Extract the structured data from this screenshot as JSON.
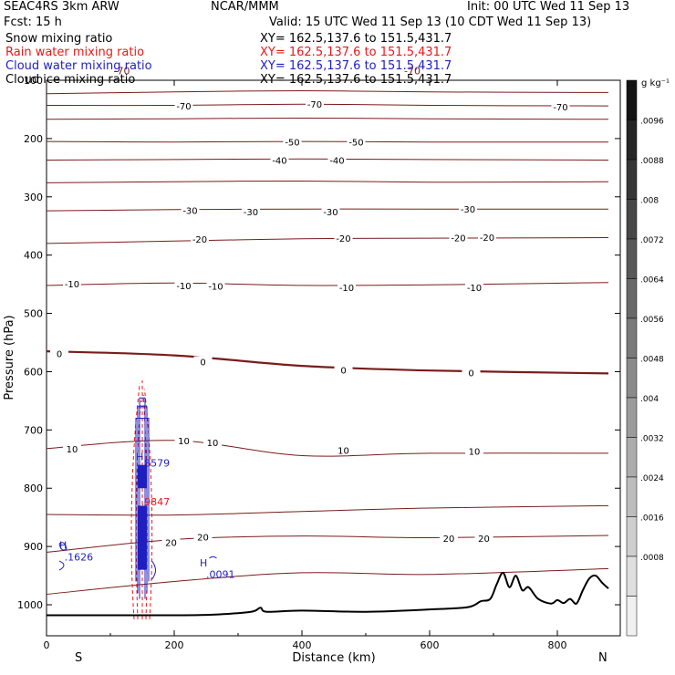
{
  "header": {
    "model": "SEAC4RS  3km ARW",
    "center": "NCAR/MMM",
    "init": "Init: 00 UTC Wed 11 Sep 13",
    "fcst": "Fcst:   15 h",
    "valid": "Valid: 15 UTC Wed 11 Sep 13 (10 CDT Wed 11 Sep 13)"
  },
  "fields": [
    {
      "name": "Snow mixing ratio",
      "xy": "XY= 162.5,137.6 to 151.5,431.7",
      "color": "#000000"
    },
    {
      "name": "Rain water mixing ratio",
      "xy": "XY= 162.5,137.6 to 151.5,431.7",
      "color": "#e41a1c"
    },
    {
      "name": "Cloud water mixing ratio",
      "xy": "XY= 162.5,137.6 to 151.5,431.7",
      "color": "#1f1fbf"
    },
    {
      "name": "Cloud ice mixing ratio",
      "xy": "XY= 162.5,137.6 to 151.5,431.7",
      "color": "#000000"
    }
  ],
  "colors": {
    "isotherm": "#7a1c1c",
    "terrain": "#000000",
    "rain": "#e41a1c",
    "cloud": "#1f1fbf"
  },
  "chart_data": {
    "type": "line",
    "xlabel": "Distance (km)",
    "ylabel": "Pressure (hPa)",
    "xlim": [
      0,
      880
    ],
    "ylim": [
      1050,
      100
    ],
    "x_ticks": [
      "0",
      "200",
      "400",
      "600",
      "800"
    ],
    "y_ticks": [
      "100",
      "200",
      "300",
      "400",
      "500",
      "600",
      "700",
      "800",
      "900",
      "1000"
    ],
    "x_end_labels": {
      "left": "S",
      "right": "N"
    },
    "colorbar": {
      "unit": "g kg⁻¹",
      "labels": [
        ".0096",
        ".0088",
        ".008",
        ".0072",
        ".0064",
        ".0056",
        ".0048",
        ".004",
        ".0032",
        ".0024",
        ".0016",
        ".0008"
      ]
    },
    "isotherms": [
      {
        "x": [
          0,
          200,
          400,
          600,
          880
        ],
        "y": [
          123,
          120,
          118,
          120,
          121
        ]
      },
      {
        "x": [
          0,
          200,
          400,
          600,
          880
        ],
        "y": [
          143,
          143,
          141,
          143,
          144
        ],
        "label": "-70"
      },
      {
        "x": [
          0,
          200,
          400,
          600,
          880
        ],
        "y": [
          167,
          166,
          165,
          166,
          167
        ]
      },
      {
        "x": [
          0,
          200,
          400,
          600,
          880
        ],
        "y": [
          205,
          206,
          205,
          206,
          206
        ],
        "label": "-50"
      },
      {
        "x": [
          0,
          200,
          400,
          600,
          880
        ],
        "y": [
          237,
          236,
          235,
          236,
          237
        ],
        "label": "-40"
      },
      {
        "x": [
          0,
          200,
          400,
          600,
          880
        ],
        "y": [
          276,
          274,
          273,
          275,
          274
        ]
      },
      {
        "x": [
          0,
          200,
          400,
          600,
          880
        ],
        "y": [
          324,
          322,
          321,
          321,
          321
        ],
        "label": "-30"
      },
      {
        "x": [
          0,
          200,
          400,
          600,
          880
        ],
        "y": [
          380,
          376,
          372,
          371,
          370
        ],
        "label": "-20"
      },
      {
        "x": [
          0,
          200,
          400,
          600,
          880
        ],
        "y": [
          452,
          448,
          452,
          451,
          447
        ],
        "label": "-10"
      },
      {
        "x": [
          0,
          200,
          400,
          600,
          880
        ],
        "y": [
          565,
          572,
          590,
          598,
          603
        ],
        "label": "0",
        "bold": true
      },
      {
        "x": [
          0,
          200,
          400,
          600,
          880
        ],
        "y": [
          732,
          718,
          744,
          740,
          740
        ],
        "label": "10"
      },
      {
        "x": [
          0,
          200,
          400,
          600,
          880
        ],
        "y": [
          845,
          846,
          840,
          834,
          830
        ]
      },
      {
        "x": [
          0,
          200,
          400,
          600,
          880
        ],
        "y": [
          910,
          888,
          882,
          885,
          881
        ],
        "label": "20"
      },
      {
        "x": [
          0,
          200,
          400,
          600,
          880
        ],
        "y": [
          982,
          960,
          945,
          948,
          938
        ]
      }
    ],
    "isotherm_labels": [
      {
        "x": 215,
        "y": 144,
        "text": "-70"
      },
      {
        "x": 420,
        "y": 141,
        "text": "-70"
      },
      {
        "x": 805,
        "y": 145,
        "text": "-70"
      },
      {
        "x": 385,
        "y": 206,
        "text": "-50"
      },
      {
        "x": 485,
        "y": 206,
        "text": "-50"
      },
      {
        "x": 365,
        "y": 237,
        "text": "-40"
      },
      {
        "x": 455,
        "y": 237,
        "text": "-40"
      },
      {
        "x": 225,
        "y": 323,
        "text": "-30"
      },
      {
        "x": 320,
        "y": 325,
        "text": "-30"
      },
      {
        "x": 445,
        "y": 325,
        "text": "-30"
      },
      {
        "x": 660,
        "y": 321,
        "text": "-30"
      },
      {
        "x": 240,
        "y": 372,
        "text": "-20"
      },
      {
        "x": 465,
        "y": 371,
        "text": "-20"
      },
      {
        "x": 645,
        "y": 370,
        "text": "-20"
      },
      {
        "x": 690,
        "y": 369,
        "text": "-20"
      },
      {
        "x": 40,
        "y": 449,
        "text": "-10"
      },
      {
        "x": 215,
        "y": 452,
        "text": "-10"
      },
      {
        "x": 265,
        "y": 453,
        "text": "-10"
      },
      {
        "x": 470,
        "y": 455,
        "text": "-10"
      },
      {
        "x": 670,
        "y": 455,
        "text": "-10"
      },
      {
        "x": 20,
        "y": 569,
        "text": "0"
      },
      {
        "x": 245,
        "y": 583,
        "text": "0"
      },
      {
        "x": 465,
        "y": 597,
        "text": "0"
      },
      {
        "x": 665,
        "y": 602,
        "text": "0"
      },
      {
        "x": 40,
        "y": 732,
        "text": "10"
      },
      {
        "x": 215,
        "y": 718,
        "text": "10"
      },
      {
        "x": 260,
        "y": 721,
        "text": "10"
      },
      {
        "x": 465,
        "y": 735,
        "text": "10"
      },
      {
        "x": 670,
        "y": 736,
        "text": "10"
      },
      {
        "x": 195,
        "y": 893,
        "text": "20"
      },
      {
        "x": 245,
        "y": 883,
        "text": "20"
      },
      {
        "x": 630,
        "y": 886,
        "text": "20"
      },
      {
        "x": 685,
        "y": 886,
        "text": "20"
      }
    ],
    "terrain": {
      "x": [
        0,
        100,
        200,
        260,
        320,
        335,
        345,
        400,
        500,
        600,
        660,
        680,
        695,
        705,
        715,
        725,
        735,
        745,
        755,
        770,
        790,
        800,
        810,
        820,
        830,
        840,
        850,
        860,
        870,
        880
      ],
      "y": [
        1018,
        1018,
        1018,
        1017,
        1012,
        1005,
        1012,
        1010,
        1012,
        1008,
        1004,
        994,
        990,
        965,
        945,
        970,
        950,
        975,
        970,
        990,
        998,
        992,
        997,
        990,
        998,
        975,
        955,
        950,
        962,
        972
      ]
    },
    "annotations": [
      {
        "text": "H",
        "x": 140,
        "y": 752,
        "color": "#1f1fbf"
      },
      {
        "text": ".8579",
        "x": 148,
        "y": 763,
        "color": "#1f1fbf"
      },
      {
        "text": ".9847",
        "x": 148,
        "y": 829,
        "color": "#e41a1c"
      },
      {
        "text": "H",
        "x": 20,
        "y": 904,
        "color": "#1f1fbf"
      },
      {
        "text": ".1626",
        "x": 28,
        "y": 924,
        "color": "#1f1fbf"
      },
      {
        "text": "H",
        "x": 240,
        "y": 934,
        "color": "#1f1fbf"
      },
      {
        "text": ".0091",
        "x": 250,
        "y": 954,
        "color": "#1f1fbf"
      },
      {
        "text": "-70",
        "x": 105,
        "y": 90,
        "color": "#7a1c1c"
      },
      {
        "text": "-70",
        "x": 560,
        "y": 90,
        "color": "#7a1c1c"
      }
    ]
  }
}
